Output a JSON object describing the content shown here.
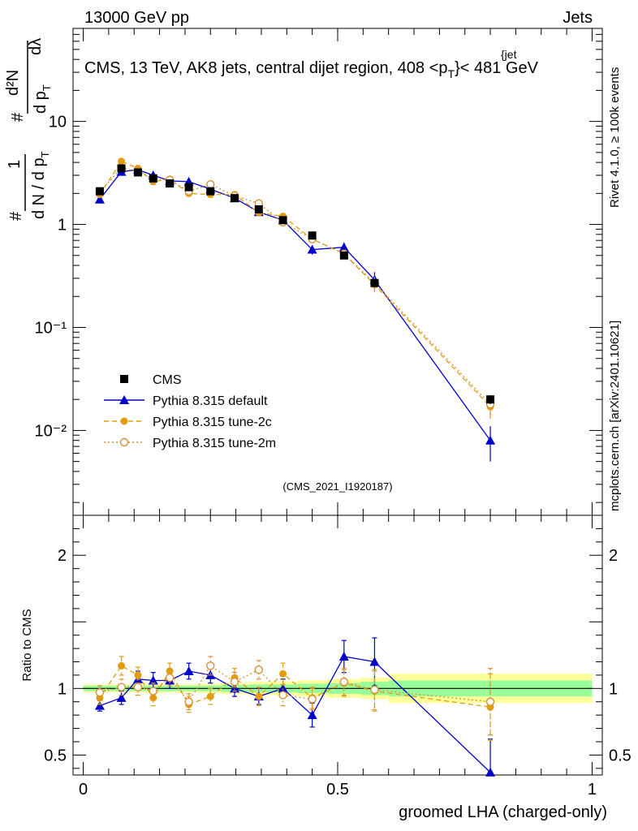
{
  "header": {
    "left": "13000 GeV pp",
    "right": "Jets",
    "plot_title": "CMS, 13 TeV, AK8 jets, central dijet region, 408 <p",
    "plot_title_sup": "{jet",
    "plot_title_sub": "T",
    "plot_title_end": "}< 481 GeV"
  },
  "side": {
    "rivet": "Rivet 4.1.0, ≥ 100k events",
    "mcplots": "mcplots.cern.ch [arXiv:2401.10621]"
  },
  "analysis_tag": "(CMS_2021_I1920187)",
  "top_ylabel": "1/N dN/dp_T d²N/dp_T dλ",
  "top_ylabel_parts": {
    "hash": "#",
    "one": "1",
    "dN": "d N / d p",
    "T": "T",
    "d2N": "d²N",
    "dp": "d p",
    "dl": "dλ"
  },
  "colors": {
    "default": "#0000cc",
    "tune2c": "#e39d0c",
    "tune2m": "#d89038",
    "band_inner": "#99ff99",
    "band_outer": "#ffff99"
  },
  "chart_data": [
    {
      "type": "scatter",
      "panel": "main",
      "yscale": "log",
      "xlim": [
        -0.02,
        1.02
      ],
      "ylim": [
        0.0015,
        80
      ],
      "y_ticks": [
        "10⁻²",
        "10⁻¹",
        "1",
        "10"
      ],
      "legend": [
        "CMS",
        "Pythia 8.315 default",
        "Pythia 8.315 tune-2c",
        "Pythia 8.315 tune-2m"
      ],
      "legend_position": "bottom-left",
      "series": [
        {
          "name": "CMS",
          "marker": "square",
          "x": [
            0.0325,
            0.075,
            0.1075,
            0.1375,
            0.17,
            0.2075,
            0.25,
            0.2975,
            0.345,
            0.3925,
            0.45,
            0.5125,
            0.5725,
            0.8
          ],
          "y": [
            2.1,
            3.5,
            3.2,
            2.8,
            2.5,
            2.3,
            2.1,
            1.8,
            1.4,
            1.1,
            0.78,
            0.5,
            0.27,
            0.02
          ],
          "yerr": [
            0.08,
            0.12,
            0.1,
            0.08,
            0.07,
            0.07,
            0.06,
            0.05,
            0.05,
            0.04,
            0.03,
            0.03,
            0.02,
            0.002
          ]
        },
        {
          "name": "Pythia 8.315 default",
          "marker": "triangle",
          "x": [
            0.0325,
            0.075,
            0.1075,
            0.1375,
            0.17,
            0.2075,
            0.25,
            0.2975,
            0.345,
            0.3925,
            0.45,
            0.5125,
            0.5725,
            0.8
          ],
          "y": [
            1.75,
            3.25,
            3.4,
            3.0,
            2.65,
            2.6,
            2.2,
            1.8,
            1.32,
            1.1,
            0.57,
            0.6,
            0.29,
            0.008
          ],
          "yerr": [
            0.1,
            0.18,
            0.2,
            0.17,
            0.15,
            0.15,
            0.13,
            0.11,
            0.09,
            0.08,
            0.06,
            0.07,
            0.055,
            0.003
          ]
        },
        {
          "name": "Pythia 8.315 tune-2c",
          "marker": "circle",
          "x": [
            0.0325,
            0.075,
            0.1075,
            0.1375,
            0.17,
            0.2075,
            0.25,
            0.2975,
            0.345,
            0.3925,
            0.45,
            0.5125,
            0.5725,
            0.8
          ],
          "y": [
            1.95,
            4.1,
            3.5,
            2.6,
            2.75,
            2.0,
            1.95,
            1.95,
            1.3,
            1.2,
            0.72,
            0.52,
            0.26,
            0.017
          ],
          "yerr": [
            0.12,
            0.25,
            0.22,
            0.17,
            0.18,
            0.14,
            0.13,
            0.13,
            0.1,
            0.09,
            0.06,
            0.05,
            0.04,
            0.004
          ]
        },
        {
          "name": "Pythia 8.315 tune-2m",
          "marker": "open-circle",
          "x": [
            0.0325,
            0.075,
            0.1075,
            0.1375,
            0.17,
            0.2075,
            0.25,
            0.2975,
            0.345,
            0.3925,
            0.45,
            0.5125,
            0.5725,
            0.8
          ],
          "y": [
            2.05,
            3.55,
            3.25,
            2.75,
            2.7,
            2.1,
            2.45,
            1.9,
            1.6,
            1.05,
            0.72,
            0.52,
            0.27,
            0.018
          ],
          "yerr": [
            0.12,
            0.22,
            0.2,
            0.17,
            0.17,
            0.14,
            0.15,
            0.12,
            0.11,
            0.08,
            0.06,
            0.05,
            0.04,
            0.004
          ]
        }
      ]
    },
    {
      "type": "scatter",
      "panel": "ratio",
      "yscale": "linear",
      "xlim": [
        -0.02,
        1.02
      ],
      "ylim": [
        0.35,
        2.3
      ],
      "xlabel": "groomed LHA (charged-only)",
      "ylabel": "Ratio to CMS",
      "x_ticks": [
        "0",
        "0.5",
        "1"
      ],
      "y_ticks": [
        "0.5",
        "1",
        "2"
      ],
      "band_edges": [
        0.0,
        0.06,
        0.095,
        0.12,
        0.155,
        0.185,
        0.23,
        0.27,
        0.325,
        0.365,
        0.42,
        0.48,
        0.545,
        0.6,
        1.0
      ],
      "band_inner": [
        0.02,
        0.02,
        0.02,
        0.02,
        0.02,
        0.02,
        0.02,
        0.025,
        0.03,
        0.03,
        0.035,
        0.04,
        0.05,
        0.06
      ],
      "band_outer": [
        0.03,
        0.03,
        0.03,
        0.035,
        0.03,
        0.03,
        0.035,
        0.04,
        0.05,
        0.05,
        0.06,
        0.07,
        0.08,
        0.11
      ],
      "series": [
        {
          "name": "Pythia 8.315 default",
          "marker": "triangle",
          "x": [
            0.0325,
            0.075,
            0.1075,
            0.1375,
            0.17,
            0.2075,
            0.25,
            0.2975,
            0.345,
            0.3925,
            0.45,
            0.5125,
            0.5725,
            0.8
          ],
          "y": [
            0.87,
            0.93,
            1.07,
            1.06,
            1.06,
            1.13,
            1.1,
            1.0,
            0.94,
            1.0,
            0.8,
            1.24,
            1.2,
            0.37
          ],
          "yerr": [
            0.04,
            0.05,
            0.06,
            0.06,
            0.06,
            0.06,
            0.06,
            0.06,
            0.06,
            0.07,
            0.09,
            0.12,
            0.18,
            0.25
          ]
        },
        {
          "name": "Pythia 8.315 tune-2c",
          "marker": "circle",
          "x": [
            0.0325,
            0.075,
            0.1075,
            0.1375,
            0.17,
            0.2075,
            0.25,
            0.2975,
            0.345,
            0.3925,
            0.45,
            0.5125,
            0.5725,
            0.8
          ],
          "y": [
            0.93,
            1.17,
            1.1,
            0.93,
            1.13,
            0.88,
            0.94,
            1.08,
            0.94,
            1.11,
            0.93,
            1.04,
            0.98,
            0.86
          ],
          "yerr": [
            0.05,
            0.07,
            0.06,
            0.06,
            0.06,
            0.06,
            0.06,
            0.07,
            0.07,
            0.08,
            0.08,
            0.1,
            0.15,
            0.25
          ]
        },
        {
          "name": "Pythia 8.315 tune-2m",
          "marker": "open-circle",
          "x": [
            0.0325,
            0.075,
            0.1075,
            0.1375,
            0.17,
            0.2075,
            0.25,
            0.2975,
            0.345,
            0.3925,
            0.45,
            0.5125,
            0.5725,
            0.8
          ],
          "y": [
            0.97,
            1.01,
            1.01,
            0.98,
            1.08,
            0.9,
            1.17,
            1.05,
            1.14,
            0.95,
            0.92,
            1.05,
            0.99,
            0.9
          ],
          "yerr": [
            0.05,
            0.06,
            0.06,
            0.06,
            0.06,
            0.06,
            0.07,
            0.07,
            0.07,
            0.08,
            0.08,
            0.1,
            0.15,
            0.25
          ]
        }
      ]
    }
  ]
}
